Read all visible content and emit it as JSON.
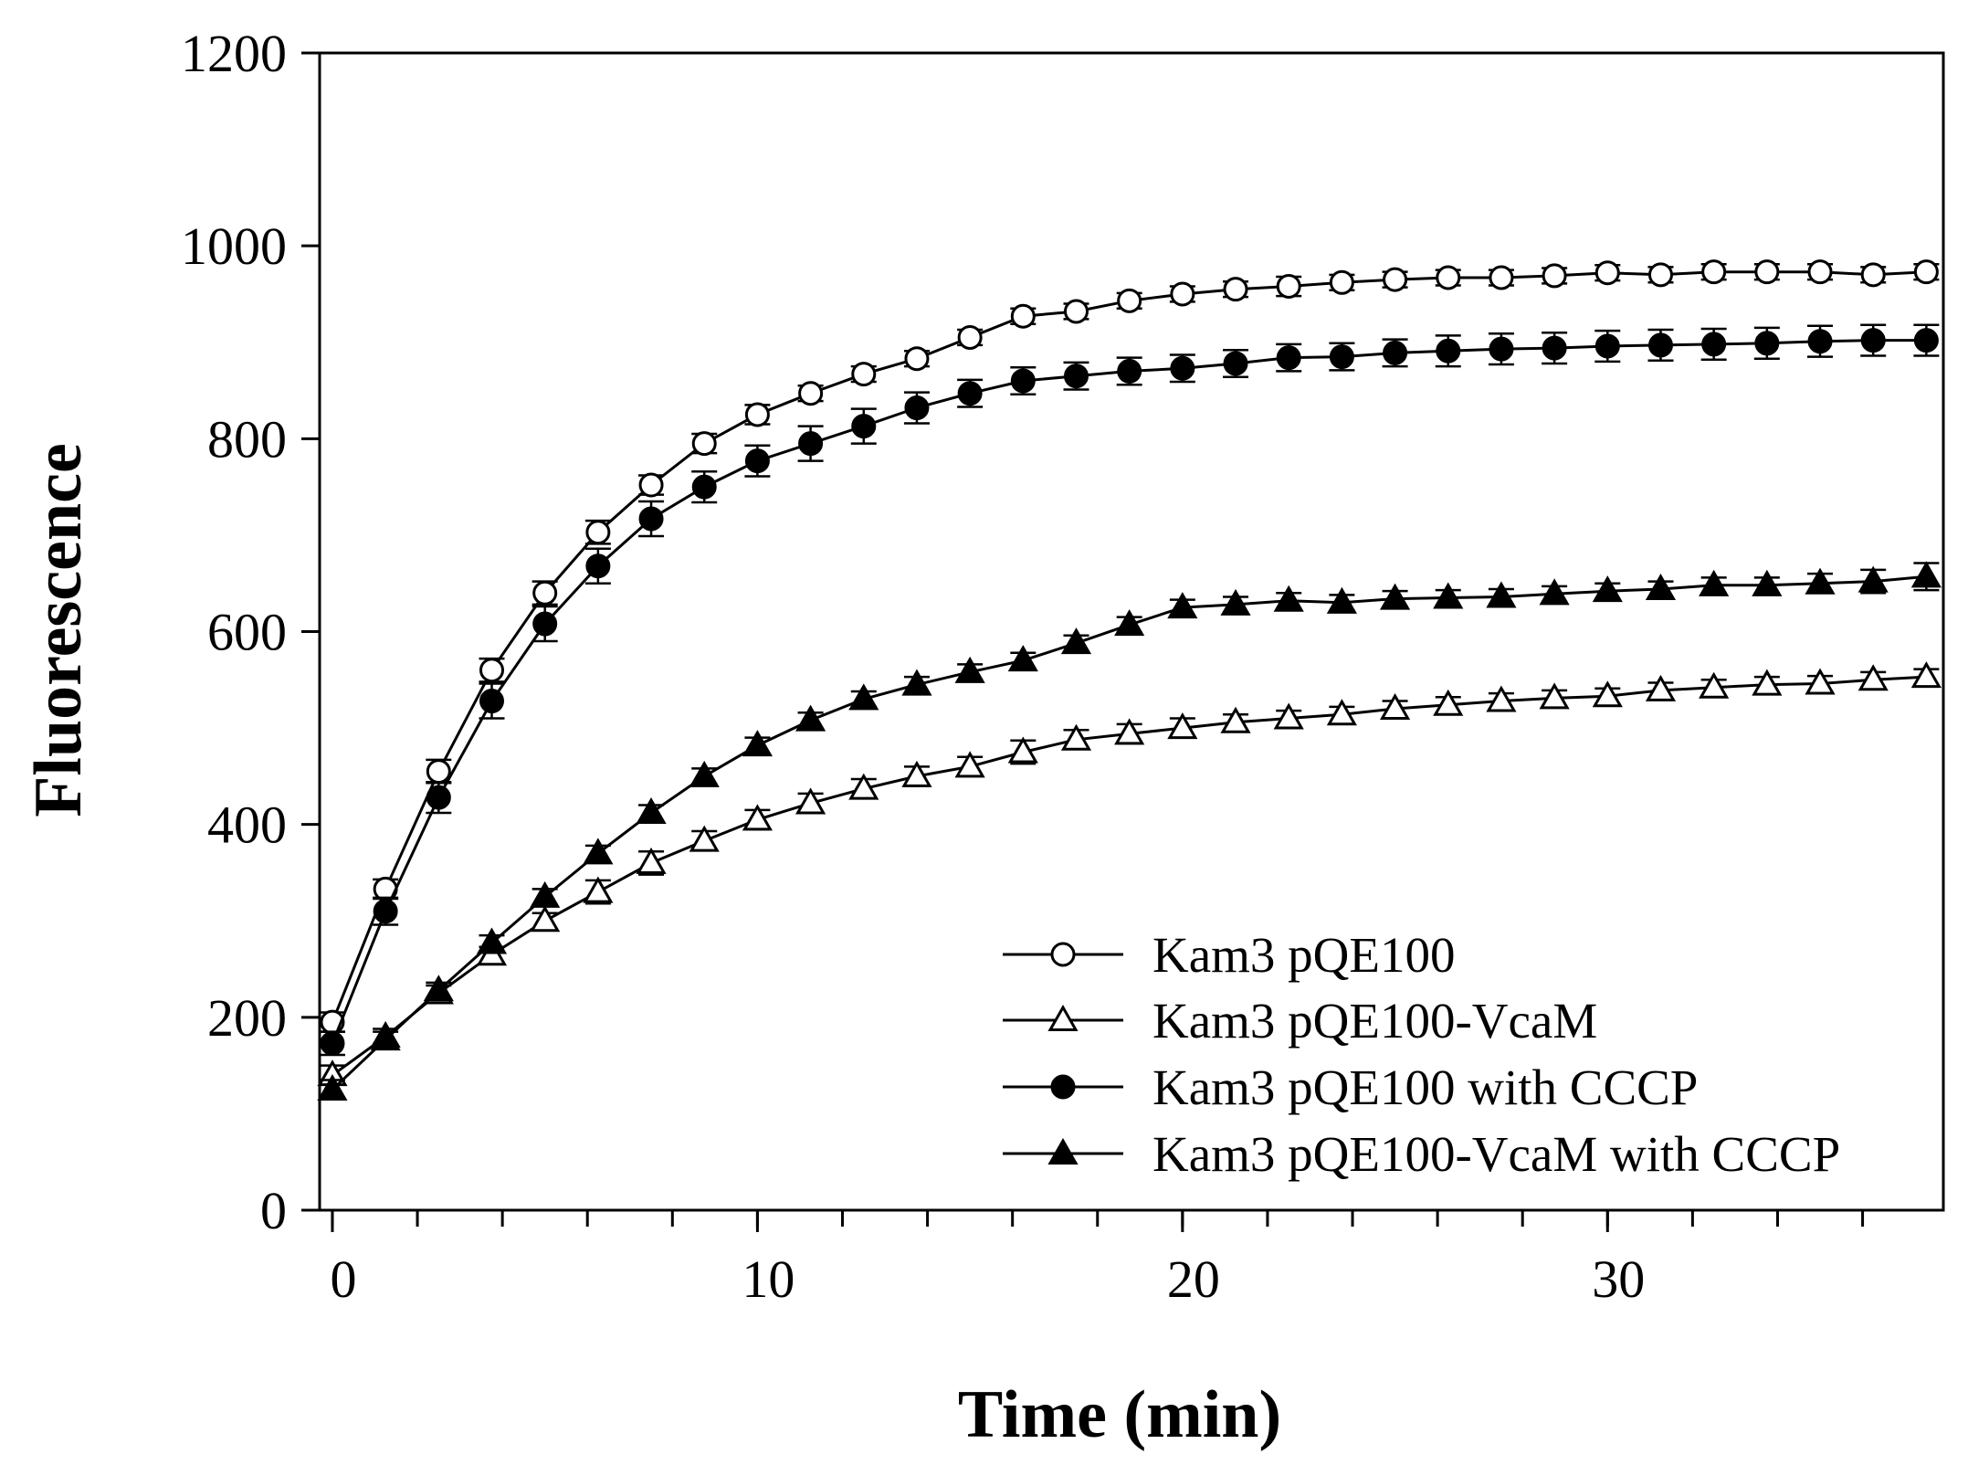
{
  "chart_data": {
    "type": "line",
    "title": "",
    "xlabel": "Time (min)",
    "ylabel": "Fluorescence",
    "xlim": [
      -0.3,
      37.9
    ],
    "ylim": [
      0,
      1200
    ],
    "xticks": [
      0,
      10,
      20,
      30
    ],
    "yticks": [
      0,
      200,
      400,
      600,
      800,
      1000,
      1200
    ],
    "x_minor_step": 2,
    "grid": false,
    "legend_position": "bottom-right",
    "x": [
      0,
      1.25,
      2.5,
      3.75,
      5,
      6.25,
      7.5,
      8.75,
      10,
      11.25,
      12.5,
      13.75,
      15,
      16.25,
      17.5,
      18.75,
      20,
      21.25,
      22.5,
      23.75,
      25,
      26.25,
      27.5,
      28.75,
      30,
      31.25,
      32.5,
      33.75,
      35,
      36.25,
      37.5
    ],
    "series": [
      {
        "name": "Kam3 pQE100",
        "marker": "circle",
        "filled": false,
        "values": [
          195,
          333,
          455,
          560,
          640,
          703,
          752,
          795,
          825,
          847,
          867,
          883,
          905,
          927,
          932,
          943,
          950,
          955,
          958,
          962,
          965,
          967,
          967,
          969,
          972,
          970,
          973,
          973,
          973,
          970,
          973
        ],
        "errors": [
          10,
          10,
          12,
          12,
          12,
          12,
          10,
          10,
          10,
          8,
          8,
          8,
          8,
          8,
          8,
          8,
          8,
          8,
          10,
          8,
          8,
          8,
          8,
          8,
          8,
          8,
          8,
          8,
          8,
          8,
          8
        ]
      },
      {
        "name": "Kam3 pQE100-VcaM",
        "marker": "triangle",
        "filled": false,
        "values": [
          140,
          180,
          225,
          265,
          300,
          330,
          360,
          383,
          405,
          422,
          437,
          450,
          460,
          475,
          488,
          494,
          500,
          506,
          510,
          514,
          520,
          524,
          528,
          531,
          533,
          539,
          542,
          545,
          546,
          550,
          553
        ],
        "errors": [
          10,
          8,
          8,
          8,
          8,
          12,
          12,
          10,
          10,
          10,
          10,
          10,
          10,
          12,
          10,
          10,
          10,
          8,
          8,
          8,
          8,
          8,
          8,
          8,
          8,
          8,
          8,
          8,
          8,
          8,
          8
        ]
      },
      {
        "name": "Kam3 pQE100 with CCCP",
        "marker": "circle",
        "filled": true,
        "values": [
          173,
          310,
          428,
          528,
          608,
          668,
          717,
          750,
          777,
          795,
          813,
          832,
          847,
          860,
          865,
          870,
          873,
          878,
          884,
          885,
          889,
          891,
          893,
          894,
          896,
          897,
          898,
          899,
          901,
          902,
          902
        ],
        "errors": [
          12,
          14,
          16,
          18,
          18,
          18,
          18,
          16,
          16,
          18,
          18,
          16,
          14,
          14,
          14,
          14,
          14,
          14,
          14,
          14,
          14,
          16,
          16,
          16,
          16,
          16,
          16,
          16,
          16,
          16,
          16
        ]
      },
      {
        "name": "Kam3 pQE100-VcaM with CCCP",
        "marker": "triangle",
        "filled": true,
        "values": [
          125,
          177,
          228,
          277,
          325,
          370,
          412,
          450,
          482,
          508,
          530,
          545,
          558,
          570,
          588,
          607,
          625,
          628,
          632,
          630,
          634,
          635,
          636,
          639,
          642,
          644,
          648,
          648,
          650,
          652,
          657
        ],
        "errors": [
          10,
          8,
          8,
          8,
          8,
          8,
          8,
          8,
          8,
          8,
          8,
          8,
          8,
          8,
          8,
          8,
          8,
          8,
          8,
          8,
          8,
          8,
          8,
          8,
          8,
          8,
          8,
          8,
          10,
          12,
          14
        ]
      }
    ]
  }
}
